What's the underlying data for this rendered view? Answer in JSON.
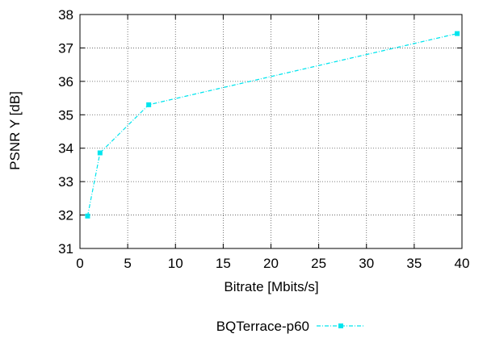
{
  "chart_data": {
    "type": "line",
    "title": "",
    "xlabel": "Bitrate [Mbits/s]",
    "ylabel": "PSNR Y [dB]",
    "xlim": [
      0,
      40
    ],
    "ylim": [
      31,
      38
    ],
    "x_ticks": [
      "0",
      "5",
      "10",
      "15",
      "20",
      "25",
      "30",
      "35",
      "40"
    ],
    "y_ticks": [
      "31",
      "32",
      "33",
      "34",
      "35",
      "36",
      "37",
      "38"
    ],
    "grid": true,
    "legend_position": "bottom",
    "series": [
      {
        "name": "BQTerrace-p60",
        "color": "#00e5ee",
        "marker": "square",
        "line_style": "dash-dot",
        "points": [
          {
            "x": 0.8,
            "y": 31.97
          },
          {
            "x": 2.1,
            "y": 33.86
          },
          {
            "x": 7.2,
            "y": 35.3
          },
          {
            "x": 39.5,
            "y": 37.43
          }
        ]
      }
    ]
  }
}
